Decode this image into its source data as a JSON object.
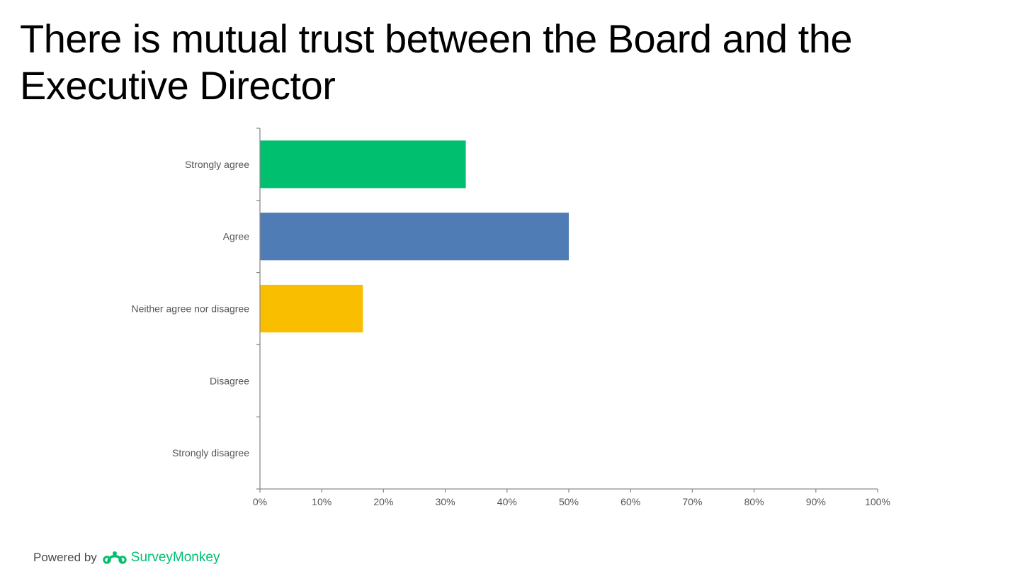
{
  "title": "There is mutual trust between the Board and the Executive Director",
  "footer": {
    "powered_by": "Powered by",
    "brand": "SurveyMonkey",
    "brand_icon": "surveymonkey-logo-icon",
    "brand_color": "#00bf6f"
  },
  "chart_data": {
    "type": "bar",
    "orientation": "horizontal",
    "categories": [
      "Strongly agree",
      "Agree",
      "Neither agree nor disagree",
      "Disagree",
      "Strongly disagree"
    ],
    "values": [
      33.33,
      50.0,
      16.67,
      0,
      0
    ],
    "colors": [
      "#00bf6f",
      "#507cb6",
      "#f9be00",
      "#6bc8cd",
      "#ff8b4f"
    ],
    "xlim": [
      0,
      100
    ],
    "xticks": [
      0,
      10,
      20,
      30,
      40,
      50,
      60,
      70,
      80,
      90,
      100
    ],
    "tick_suffix": "%",
    "grid": false,
    "legend": "none"
  }
}
